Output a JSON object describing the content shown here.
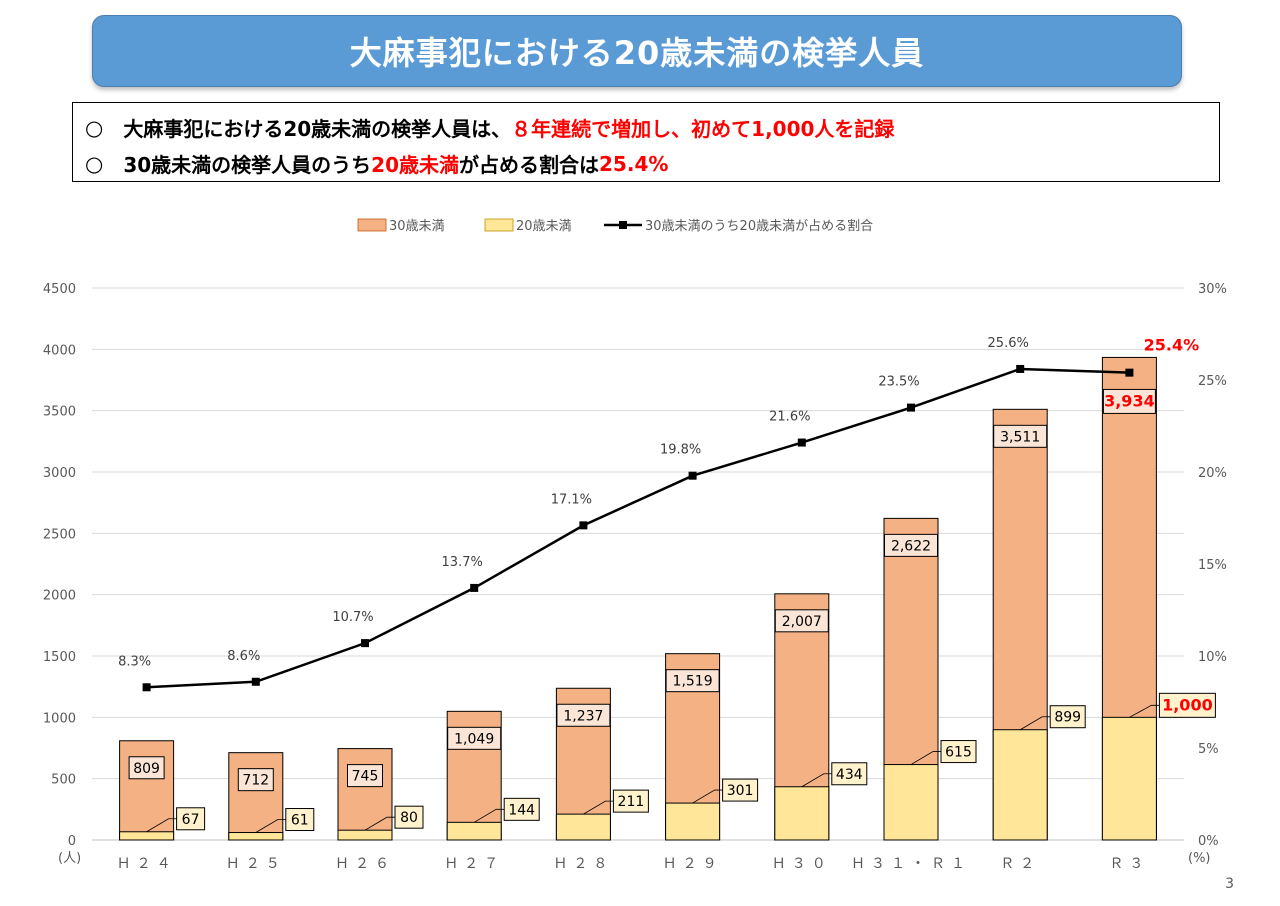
{
  "header": {
    "title": "大麻事犯における20歳未満の検挙人員"
  },
  "summary": {
    "bullet": "○",
    "line1": {
      "black": "大麻事犯における20歳未満の検挙人員は、",
      "red": "８年連続で増加し、初めて1,000人を記録"
    },
    "line2": {
      "black1": "30歳未満の検挙人員のうち",
      "red1": "20歳未満",
      "black2": "が占める割合は",
      "red2": "25.4%"
    }
  },
  "page_number": "3",
  "colors": {
    "banner": "#5b9bd5",
    "under30": "#f4b183",
    "under20": "#ffe699",
    "line": "#000000",
    "highlight": "#ff0000"
  },
  "chart_data": {
    "type": "bar",
    "stacked": false,
    "overlaid": true,
    "categories": [
      "Ｈ２４",
      "Ｈ２５",
      "Ｈ２６",
      "Ｈ２７",
      "Ｈ２８",
      "Ｈ２９",
      "Ｈ３０",
      "Ｈ３１・Ｒ１",
      "Ｒ２",
      "Ｒ３"
    ],
    "series": [
      {
        "name": "30歳未満",
        "kind": "bar",
        "axis": "left",
        "color": "#f4b183",
        "values": [
          809,
          712,
          745,
          1049,
          1237,
          1519,
          2007,
          2622,
          3511,
          3934
        ],
        "labels": [
          "809",
          "712",
          "745",
          "1,049",
          "1,237",
          "1,519",
          "2,007",
          "2,622",
          "3,511",
          "3,934"
        ]
      },
      {
        "name": "20歳未満",
        "kind": "bar",
        "axis": "left",
        "color": "#ffe699",
        "values": [
          67,
          61,
          80,
          144,
          211,
          301,
          434,
          615,
          899,
          1000
        ],
        "labels": [
          "67",
          "61",
          "80",
          "144",
          "211",
          "301",
          "434",
          "615",
          "899",
          "1,000"
        ]
      },
      {
        "name": "30歳未満のうち20歳未満が占める割合",
        "kind": "line",
        "axis": "right",
        "color": "#000000",
        "values": [
          8.3,
          8.6,
          10.7,
          13.7,
          17.1,
          19.8,
          21.6,
          23.5,
          25.6,
          25.4
        ],
        "labels": [
          "8.3%",
          "8.6%",
          "10.7%",
          "13.7%",
          "17.1%",
          "19.8%",
          "21.6%",
          "23.5%",
          "25.6%",
          "25.4%"
        ]
      }
    ],
    "highlight_index": 9,
    "left_axis": {
      "unit": "(人)",
      "ylim": [
        0,
        4500
      ],
      "ticks": [
        "0",
        "500",
        "1000",
        "1500",
        "2000",
        "2500",
        "3000",
        "3500",
        "4000",
        "4500"
      ]
    },
    "right_axis": {
      "unit": "(%)",
      "ylim": [
        0,
        30
      ],
      "ticks": [
        "0%",
        "5%",
        "10%",
        "15%",
        "20%",
        "25%",
        "30%"
      ]
    },
    "grid": true,
    "legend_position": "top"
  }
}
